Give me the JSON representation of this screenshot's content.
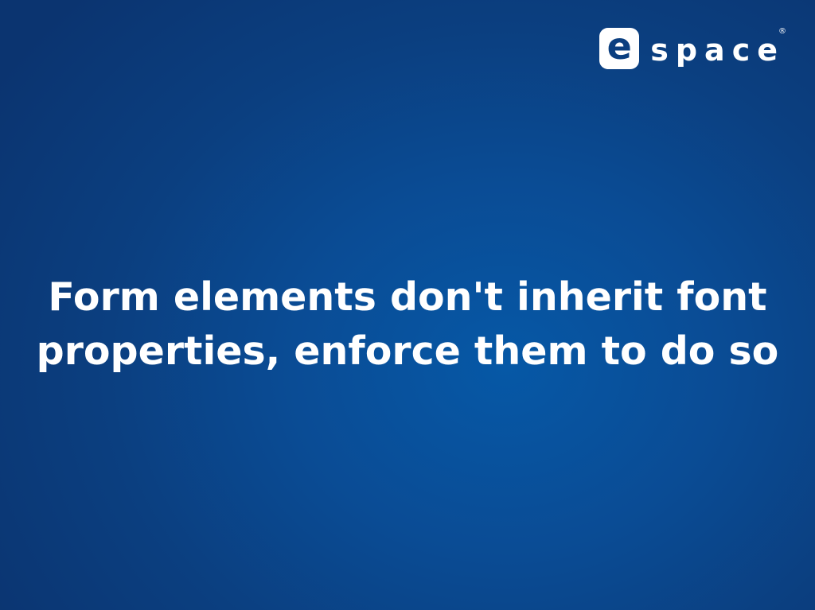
{
  "logo": {
    "letter": "e",
    "word": "space",
    "registered": "®"
  },
  "slide": {
    "title_lines": [
      "Form elements don't inherit font",
      "properties, enforce them to do so"
    ]
  },
  "colors": {
    "background": "#0b3f80",
    "background_center": "#0658a6",
    "text": "#ffffff"
  }
}
